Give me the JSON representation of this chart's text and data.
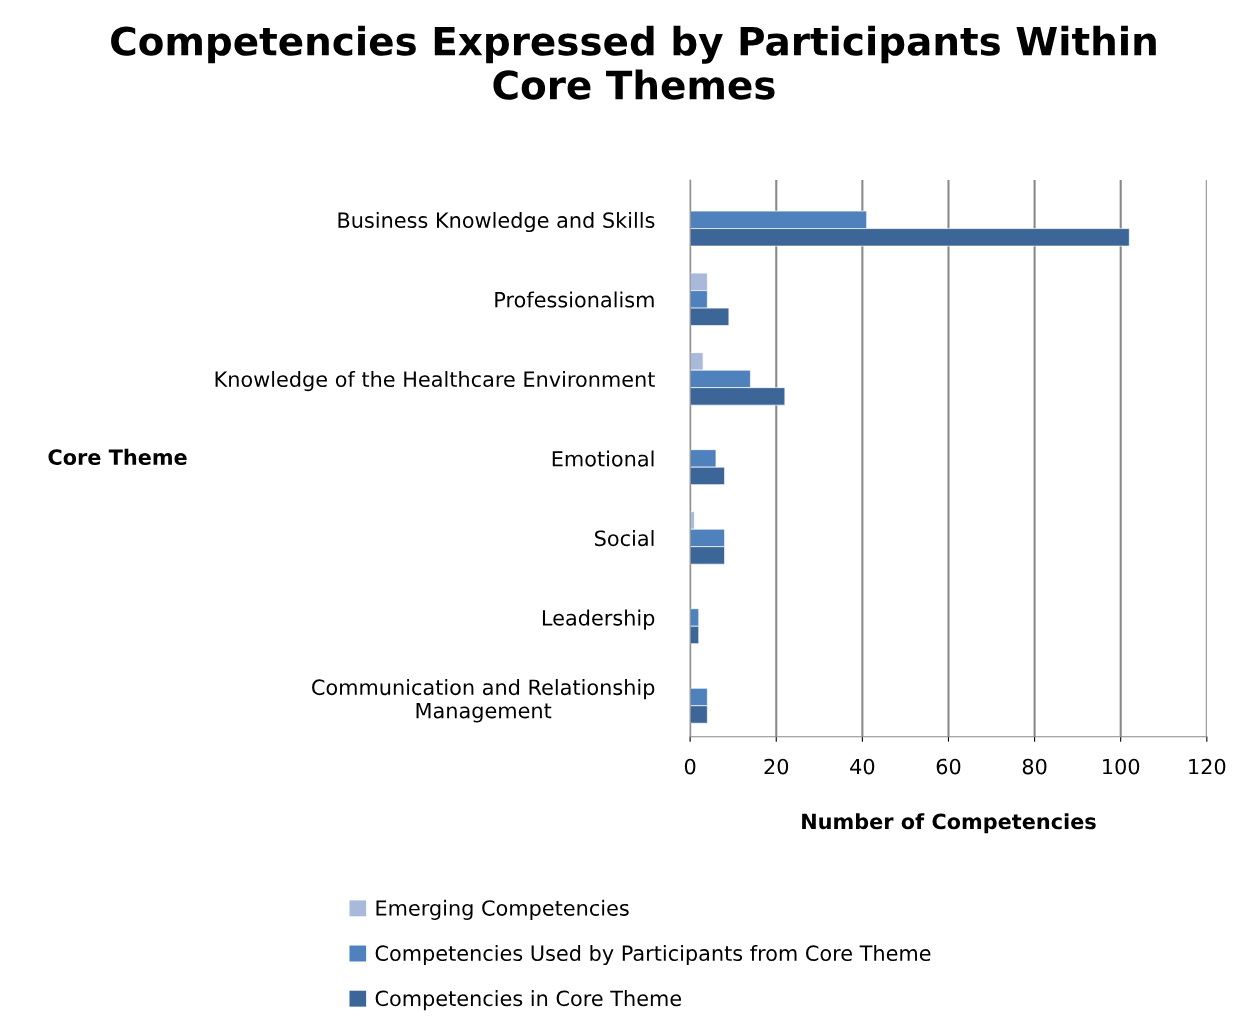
{
  "chart_data": {
    "type": "bar",
    "orientation": "horizontal",
    "title": "Competencies Expressed by Participants Within\nCore Themes",
    "xlabel": "Number of Competencies",
    "ylabel": "Core Theme",
    "categories": [
      "Business Knowledge and Skills",
      "Professionalism",
      "Knowledge of the Healthcare Environment",
      "Emotional",
      "Social",
      "Leadership",
      "Communication and Relationship\nManagement"
    ],
    "series": [
      {
        "name": "Emerging Competencies",
        "color": "#a9b9d9",
        "values": [
          null,
          4,
          3,
          null,
          1,
          null,
          null
        ]
      },
      {
        "name": "Competencies Used by Participants from Core Theme",
        "color": "#4f81bd",
        "values": [
          41,
          4,
          14,
          6,
          8,
          2,
          4
        ]
      },
      {
        "name": "Competencies in Core Theme",
        "color": "#3c6698",
        "values": [
          102,
          9,
          22,
          8,
          8,
          2,
          4
        ]
      }
    ],
    "xlim": [
      0,
      120
    ],
    "xticks": [
      0,
      20,
      40,
      60,
      80,
      100,
      120
    ],
    "grid": "x",
    "legend": "bottom"
  }
}
